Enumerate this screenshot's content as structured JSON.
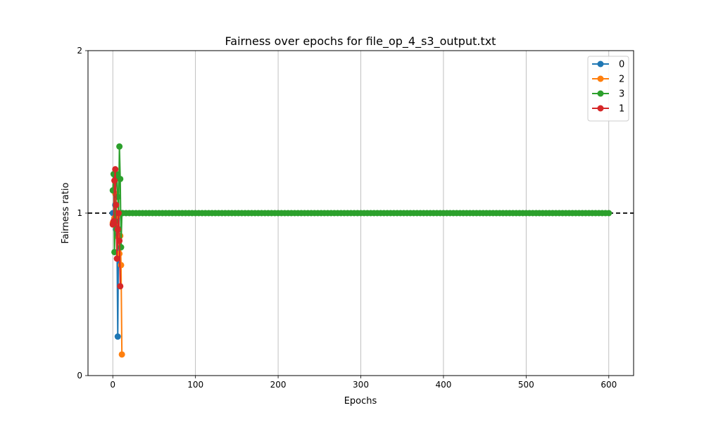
{
  "chart_data": {
    "type": "line",
    "title": "Fairness over epochs for file_op_4_s3_output.txt",
    "xlabel": "Epochs",
    "ylabel": "Fairness ratio",
    "xlim": [
      -30,
      630
    ],
    "ylim": [
      0,
      2
    ],
    "x_ticks": [
      0,
      100,
      200,
      300,
      400,
      500,
      600
    ],
    "y_ticks": [
      0,
      1,
      2
    ],
    "x_grid": true,
    "y_grid": false,
    "legend_position": "top-right",
    "reference_line": {
      "y": 1,
      "style": "dashed",
      "color": "#000000"
    },
    "series": [
      {
        "name": "0",
        "color": "#1f77b4",
        "points": [
          [
            0,
            1.0
          ],
          [
            1,
            0.93
          ],
          [
            2,
            0.97
          ],
          [
            3,
            1.05
          ],
          [
            4,
            0.9
          ],
          [
            5,
            0.86
          ],
          [
            6,
            0.24
          ],
          [
            7,
            0.9
          ],
          [
            8,
            1.0
          ]
        ]
      },
      {
        "name": "2",
        "color": "#ff7f0e",
        "points": [
          [
            0,
            0.94
          ],
          [
            1,
            0.93
          ],
          [
            2,
            0.97
          ],
          [
            3,
            1.12
          ],
          [
            4,
            1.05
          ],
          [
            5,
            0.98
          ],
          [
            6,
            0.9
          ],
          [
            7,
            0.85
          ],
          [
            8,
            0.75
          ],
          [
            9,
            0.86
          ],
          [
            10,
            0.68
          ],
          [
            11,
            0.13
          ]
        ]
      },
      {
        "name": "3",
        "color": "#2ca02c",
        "points_head": [
          [
            0,
            1.14
          ],
          [
            1,
            1.24
          ],
          [
            2,
            0.76
          ],
          [
            3,
            0.95
          ],
          [
            4,
            1.22
          ],
          [
            5,
            1.24
          ],
          [
            6,
            1.1
          ],
          [
            7,
            1.0
          ],
          [
            8,
            1.41
          ],
          [
            9,
            1.21
          ],
          [
            10,
            0.79
          ],
          [
            11,
            1.0
          ],
          [
            12,
            1.0
          ]
        ],
        "constant_tail": {
          "from": 12,
          "to": 600,
          "step": 4,
          "y": 1.0
        }
      },
      {
        "name": "1",
        "color": "#d62728",
        "points": [
          [
            0,
            0.93
          ],
          [
            1,
            0.95
          ],
          [
            2,
            1.2
          ],
          [
            3,
            1.27
          ],
          [
            4,
            1.05
          ],
          [
            5,
            0.72
          ],
          [
            6,
            0.9
          ],
          [
            7,
            1.0
          ],
          [
            8,
            0.83
          ],
          [
            9,
            0.55
          ]
        ]
      }
    ],
    "legend_order": [
      "0",
      "2",
      "3",
      "1"
    ]
  }
}
